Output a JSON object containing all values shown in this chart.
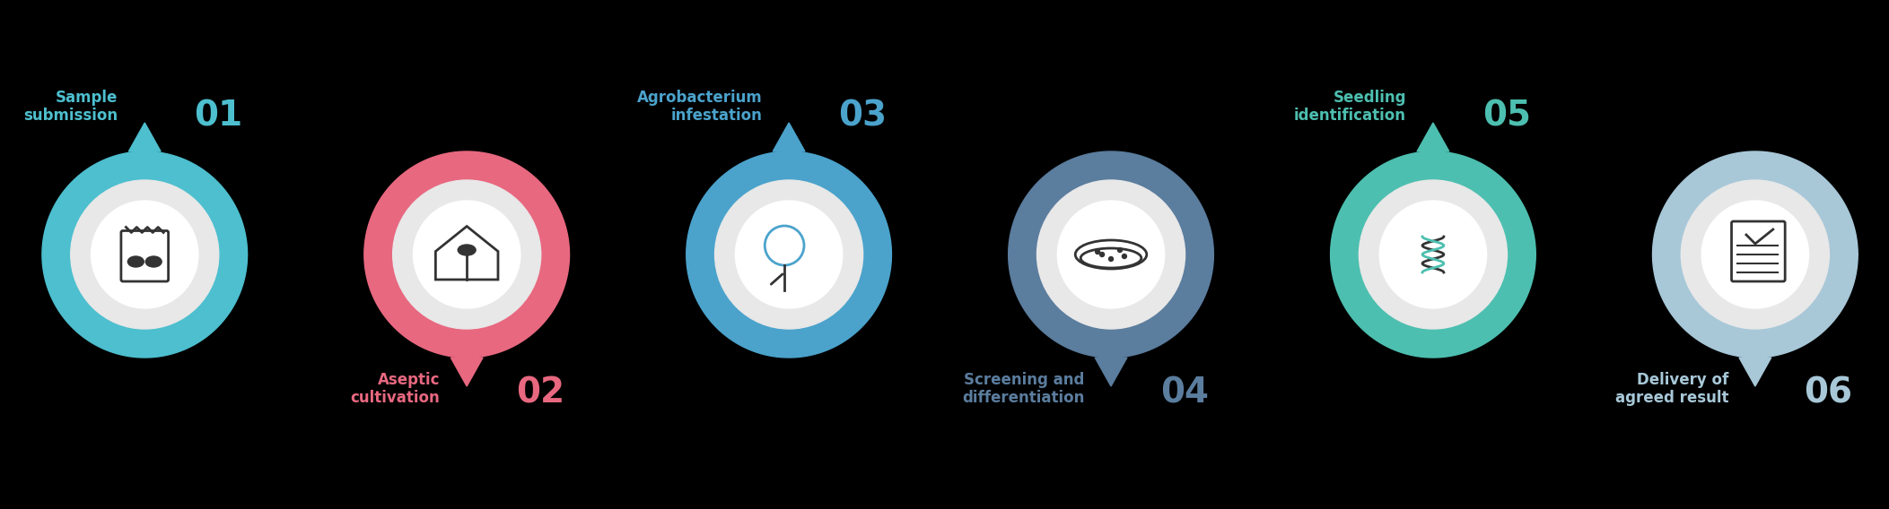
{
  "background_color": "#000000",
  "steps": [
    {
      "id": 1,
      "label": "Sample\nsubmission",
      "number": "01",
      "ring_color": "#4DBFCF",
      "label_color": "#4DBFCF",
      "number_color": "#4DBFCF",
      "label_position": "top",
      "notch_position": "top"
    },
    {
      "id": 2,
      "label": "Aseptic\ncultivation",
      "number": "02",
      "ring_color": "#E86880",
      "label_color": "#E86880",
      "number_color": "#E86880",
      "label_position": "bottom",
      "notch_position": "bottom"
    },
    {
      "id": 3,
      "label": "Agrobacterium\ninfestation",
      "number": "03",
      "ring_color": "#4BA3CC",
      "label_color": "#4BA3CC",
      "number_color": "#4BA3CC",
      "label_position": "top",
      "notch_position": "top"
    },
    {
      "id": 4,
      "label": "Screening and\ndifferentiation",
      "number": "04",
      "ring_color": "#5B7D9E",
      "label_color": "#5B7D9E",
      "number_color": "#5B7D9E",
      "label_position": "bottom",
      "notch_position": "bottom"
    },
    {
      "id": 5,
      "label": "Seedling\nidentification",
      "number": "05",
      "ring_color": "#4DBFB0",
      "label_color": "#4DBFB0",
      "number_color": "#4DBFB0",
      "label_position": "top",
      "notch_position": "top"
    },
    {
      "id": 6,
      "label": "Delivery of\nagreed result",
      "number": "06",
      "ring_color": "#A8C8D8",
      "label_color": "#A8C8D8",
      "number_color": "#A8C8D8",
      "label_position": "bottom",
      "notch_position": "bottom"
    }
  ],
  "figsize": [
    21.05,
    5.68
  ],
  "dpi": 100
}
